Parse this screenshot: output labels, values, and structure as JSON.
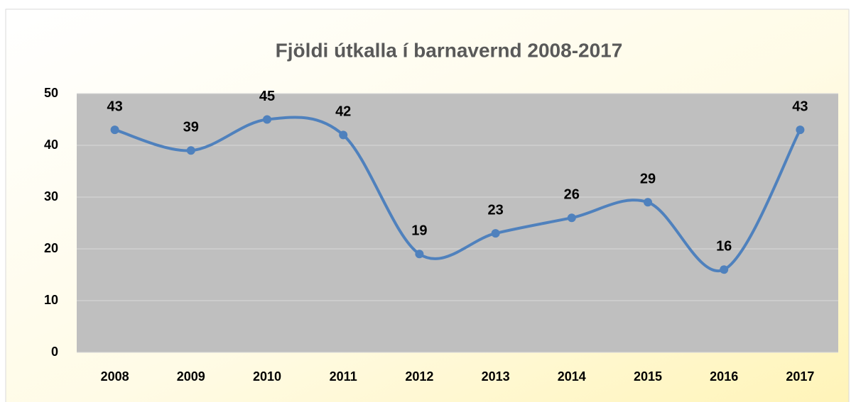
{
  "chart_data": {
    "type": "line",
    "title": "Fjöldi útkalla í barnavernd 2008-2017",
    "categories": [
      "2008",
      "2009",
      "2010",
      "2011",
      "2012",
      "2013",
      "2014",
      "2015",
      "2016",
      "2017"
    ],
    "series": [
      {
        "name": "Fjöldi útkalla",
        "color": "#4f81bd",
        "values": [
          43,
          39,
          45,
          42,
          19,
          23,
          26,
          29,
          16,
          43
        ]
      }
    ],
    "ylim": [
      0,
      50
    ],
    "yticks": [
      0,
      10,
      20,
      30,
      40,
      50
    ],
    "grid": true,
    "smooth": true,
    "plot_background": "#bfbfbf"
  }
}
